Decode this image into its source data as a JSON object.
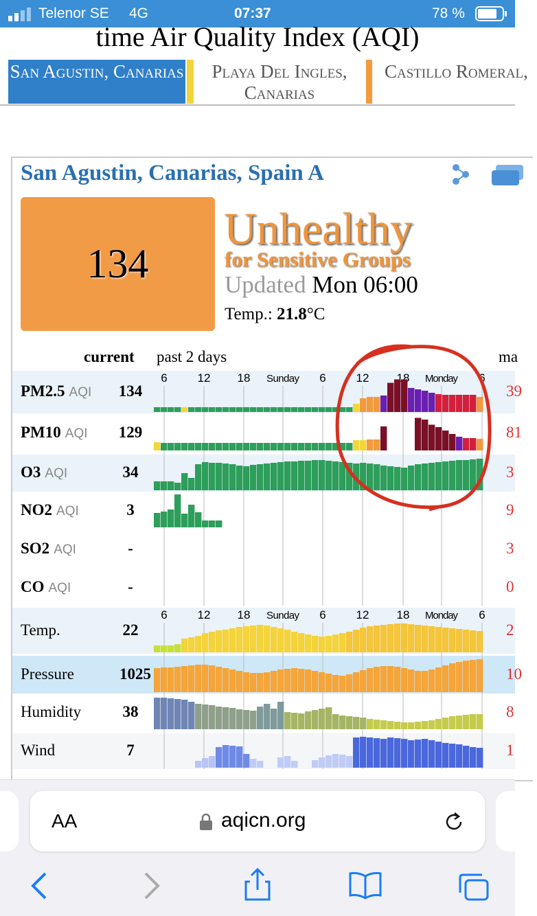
{
  "status_bar": {
    "carrier": "Telenor SE",
    "network": "4G",
    "time": "07:37",
    "battery": "78 %"
  },
  "header": {
    "title": "time Air Quality Index (AQI)"
  },
  "tabs": [
    "San Agustin, Canarias",
    "Playa Del Ingles, Canarias",
    "Castillo Romeral,"
  ],
  "station": {
    "name": "San Agustin, Canarias, Spain A",
    "aqi": 134,
    "level": "Unhealthy",
    "level_detail": "for Sensitive Groups",
    "updated_label": "Updated",
    "updated": "Mon 06:00",
    "temp_label": "Temp.:",
    "temp": 21.8,
    "temp_unit": "°C"
  },
  "table": {
    "current": "current",
    "period": "past 2 days",
    "max": "ma",
    "ylim": [
      0,
      100
    ],
    "time_ticks": [
      "6",
      "12",
      "18",
      "Sunday",
      "6",
      "12",
      "18",
      "Monday",
      "6"
    ],
    "rows": [
      {
        "name": "PM2.5",
        "unit": "AQI",
        "current": 134,
        "max": "39",
        "bars": [
          {
            "color": "#2e9e5b",
            "values": [
              14,
              14,
              14,
              14
            ]
          },
          {
            "color": "#f5d63a",
            "values": [
              14
            ]
          },
          {
            "color": "#2e9e5b",
            "values": [
              14,
              14,
              14,
              14,
              14,
              14,
              14,
              14,
              14,
              14,
              14,
              14,
              14,
              14,
              14,
              14,
              14,
              14,
              14,
              14,
              14,
              14,
              14,
              14
            ]
          },
          {
            "color": "#f5d63a",
            "values": [
              24
            ]
          },
          {
            "color": "#f29a3c",
            "values": [
              40,
              44,
              44
            ]
          },
          {
            "color": "#6a1fb0",
            "values": [
              48
            ]
          },
          {
            "color": "#7a1028",
            "values": [
              85,
              95,
              95
            ]
          },
          {
            "color": "#6a1fb0",
            "values": [
              70,
              66,
              62,
              56
            ]
          },
          {
            "color": "#d2203c",
            "values": [
              52,
              50,
              50,
              50,
              50,
              50
            ]
          },
          {
            "color": "#f29a3c",
            "values": [
              44
            ]
          }
        ]
      },
      {
        "name": "PM10",
        "unit": "AQI",
        "current": 129,
        "max": "81",
        "bars": [
          {
            "color": "#f5d63a",
            "values": [
              24
            ]
          },
          {
            "color": "#2e9e5b",
            "values": [
              22,
              22,
              22,
              22,
              22,
              22,
              22,
              22,
              22,
              22,
              22,
              22,
              22,
              22,
              22,
              22,
              22,
              22,
              22,
              22,
              22,
              22,
              22,
              22,
              22,
              22,
              22,
              22
            ]
          },
          {
            "color": "#f5d63a",
            "values": [
              30,
              30
            ]
          },
          {
            "color": "#f29a3c",
            "values": [
              32,
              32
            ]
          },
          {
            "color": "#7a1028",
            "values": [
              70,
              null,
              null,
              null,
              null,
              95,
              90,
              75,
              68,
              58,
              48
            ]
          },
          {
            "color": "#6a1fb0",
            "values": [
              40
            ]
          },
          {
            "color": "#d2203c",
            "values": [
              36,
              36
            ]
          },
          {
            "color": "#f29a3c",
            "values": [
              34
            ]
          }
        ]
      },
      {
        "name": "O3",
        "unit": "AQI",
        "current": 34,
        "max": "3",
        "bars": [
          {
            "color": "#2e9e5b",
            "values": [
              26,
              26,
              26,
              22,
              50,
              36,
              76,
              82,
              80,
              80,
              78,
              76,
              72,
              70,
              74,
              76,
              78,
              80,
              82,
              84,
              84,
              86,
              86,
              88,
              88,
              86,
              84,
              82,
              80,
              78,
              80,
              78,
              76,
              72,
              70,
              68,
              66,
              72,
              76,
              78,
              80,
              82,
              84,
              86,
              88,
              88,
              90,
              92
            ]
          }
        ]
      },
      {
        "name": "NO2",
        "unit": "AQI",
        "current": 3,
        "max": "9",
        "bars": [
          {
            "color": "#2e9e5b",
            "values": [
              42,
              46,
              52,
              96,
              40,
              66,
              44,
              20,
              20,
              20
            ]
          }
        ]
      },
      {
        "name": "SO2",
        "unit": "AQI",
        "current": "-",
        "max": "3",
        "bars": []
      },
      {
        "name": "CO",
        "unit": "AQI",
        "current": "-",
        "max": "0",
        "bars": []
      },
      {
        "name": "Temp.",
        "current": 22,
        "max": "2",
        "bars": [
          {
            "color": "#c6e03a",
            "values": [
              20,
              20,
              20,
              24
            ]
          },
          {
            "color": "#f5d33a",
            "values": [
              40,
              44,
              48,
              56,
              60,
              64,
              66,
              70,
              74,
              76,
              78,
              80,
              78,
              74,
              70,
              66,
              60,
              56,
              52,
              48,
              46,
              48,
              52,
              56
            ]
          },
          {
            "color": "#f5c53a",
            "values": [
              60,
              66,
              72,
              76,
              78,
              80,
              82,
              84,
              84,
              82,
              80,
              78,
              76,
              74,
              72,
              70,
              68,
              66,
              64,
              62
            ]
          }
        ]
      },
      {
        "name": "Pressure",
        "current": 1025,
        "max": "10",
        "bars": [
          {
            "color": "#f5a53a",
            "values": [
              70,
              72,
              72,
              74,
              76,
              78,
              80,
              80,
              78,
              74,
              70,
              66,
              62,
              58,
              56,
              56,
              58,
              62,
              66,
              68,
              70,
              68,
              66,
              62,
              58,
              54,
              50,
              48,
              52,
              58,
              64,
              70,
              74,
              76,
              76,
              74,
              70,
              66,
              62,
              62,
              66,
              72,
              78,
              84,
              88,
              92,
              94,
              96
            ]
          }
        ]
      },
      {
        "name": "Humidity",
        "current": 38,
        "max": "8",
        "bars": [
          {
            "color": "#6f86b4",
            "values": [
              92,
              92,
              90,
              88,
              86,
              80
            ]
          },
          {
            "color": "#8fa08a",
            "values": [
              74,
              72,
              70,
              66,
              64,
              62,
              58,
              56,
              54
            ]
          },
          {
            "color": "#7f9a9a",
            "values": [
              66,
              74,
              60,
              80
            ]
          },
          {
            "color": "#a5b565",
            "values": [
              50,
              48,
              46,
              52,
              56,
              60,
              64,
              44,
              40,
              38,
              36,
              34
            ]
          },
          {
            "color": "#c5cc4d",
            "values": [
              30,
              28,
              26,
              24,
              22,
              20,
              20,
              22,
              24,
              26,
              30,
              34,
              38,
              40,
              42,
              44,
              44
            ]
          }
        ]
      },
      {
        "name": "Wind",
        "current": 7,
        "max": "1",
        "bars": [
          {
            "color": "#b8c4f4",
            "values": [
              null,
              null,
              null,
              null,
              null,
              null,
              20,
              28,
              34
            ]
          },
          {
            "color": "#6f8ae6",
            "values": [
              60,
              66,
              64,
              62,
              40
            ]
          },
          {
            "color": "#c0ccf6",
            "values": [
              26,
              20,
              null,
              null,
              30,
              34,
              20,
              null,
              null,
              22,
              30,
              36,
              40,
              38,
              34
            ]
          },
          {
            "color": "#4a68dc",
            "values": [
              88,
              90,
              88,
              86,
              84,
              88,
              86,
              84,
              80,
              82,
              84,
              80,
              76,
              72,
              70,
              68,
              64,
              60,
              58
            ]
          }
        ]
      }
    ]
  },
  "browser": {
    "font_button": "AA",
    "url": "aqicn.org"
  }
}
